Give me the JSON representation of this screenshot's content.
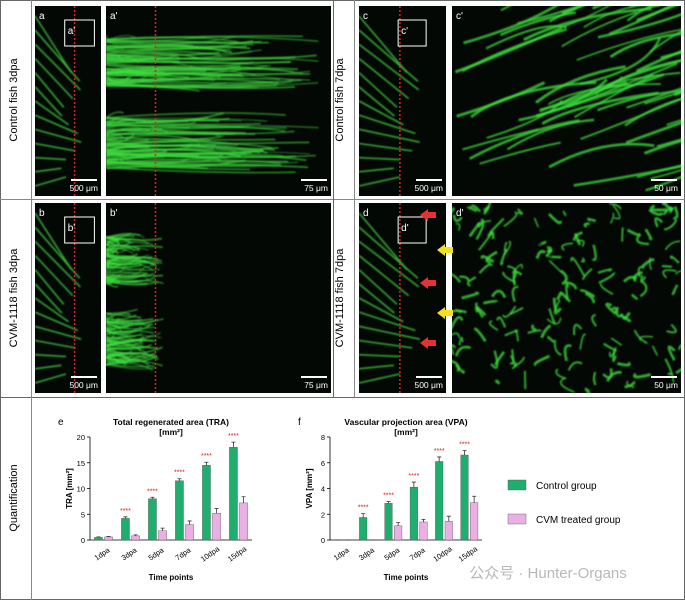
{
  "row_labels": [
    "Control fish 3dpa",
    "CVM-1118  fish 3dpa",
    "Control fish 7dpa",
    "CVM-1118 fish 7dpa"
  ],
  "panels": [
    {
      "label": "a",
      "inset": "a'",
      "scale": "500 μm"
    },
    {
      "label": "a'",
      "scale": "75 μm"
    },
    {
      "label": "b",
      "inset": "b'",
      "scale": "500 μm"
    },
    {
      "label": "b'",
      "scale": "75 μm"
    },
    {
      "label": "c",
      "inset": "c'",
      "scale": "500 μm"
    },
    {
      "label": "c'",
      "scale": "50 μm"
    },
    {
      "label": "d",
      "inset": "d'",
      "scale": "500 μm"
    },
    {
      "label": "d'",
      "scale": "50 μm"
    }
  ],
  "section_label": "Quantification",
  "watermark": "公众号 · Hunter-Organs",
  "chart_data": [
    {
      "type": "bar",
      "panel_label": "e",
      "title": "Total regenerated area (TRA)",
      "title_unit": "[mm²]",
      "y_label": "TRA [mm²]",
      "x_label": "Time points",
      "categories": [
        "1dpa",
        "3dpa",
        "5dpa",
        "7dpa",
        "10dpa",
        "15dpa"
      ],
      "series": [
        {
          "name": "Control group",
          "color": "#1fae6e",
          "values": [
            0.5,
            4.2,
            8.0,
            11.5,
            14.5,
            18.0
          ],
          "errors": [
            0.1,
            0.3,
            0.3,
            0.4,
            0.6,
            1.0
          ]
        },
        {
          "name": "CVM treated group",
          "color": "#eab0e6",
          "values": [
            0.6,
            0.8,
            1.8,
            3.0,
            5.2,
            7.2
          ],
          "errors": [
            0.1,
            0.2,
            0.5,
            0.7,
            0.9,
            1.2
          ]
        }
      ],
      "annotations": [
        null,
        "****",
        "****",
        "****",
        "****",
        "****"
      ],
      "ylim": [
        0,
        20
      ],
      "yticks": [
        0,
        5,
        10,
        15,
        20
      ]
    },
    {
      "type": "bar",
      "panel_label": "f",
      "title": "Vascular projection area (VPA)",
      "title_unit": "[mm²]",
      "y_label": "VPA [mm²]",
      "x_label": "Time points",
      "categories": [
        "1dpa",
        "3dpa",
        "5dpa",
        "7dpa",
        "10dpa",
        "15dpa"
      ],
      "series": [
        {
          "color": "#1fae6e",
          "values": [
            0,
            1.75,
            2.85,
            4.1,
            6.1,
            6.6
          ],
          "errors": [
            0,
            0.3,
            0.15,
            0.4,
            0.35,
            0.35
          ]
        },
        {
          "color": "#eab0e6",
          "values": [
            0,
            0,
            1.1,
            1.4,
            1.45,
            2.9
          ],
          "errors": [
            0,
            0,
            0.25,
            0.2,
            0.4,
            0.5
          ]
        }
      ],
      "annotations": [
        null,
        "****",
        "****",
        "****",
        "****",
        "****"
      ],
      "ylim": [
        0,
        8
      ],
      "yticks": [
        0,
        2,
        4,
        6,
        8
      ]
    }
  ]
}
